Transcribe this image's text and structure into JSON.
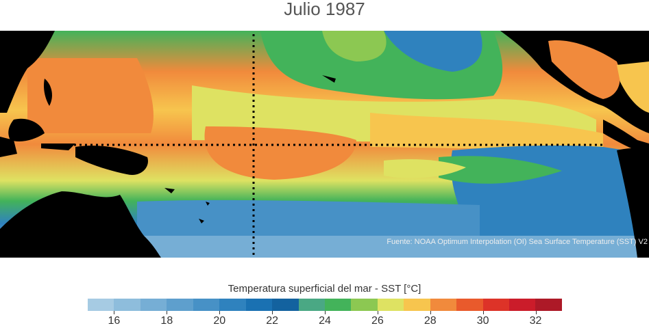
{
  "map": {
    "title": "Julio 1987",
    "source": "Fuente: NOAA Optimum Interpolation (OI) Sea Surface Temperature (SST) V2",
    "colorbar_label": "Temperatura superficial del mar - SST  [°C]",
    "colorbar_min": 15,
    "colorbar_max": 33,
    "tick_values": [
      16,
      18,
      20,
      22,
      24,
      26,
      28,
      30,
      32
    ],
    "tick_labels": [
      "16",
      "18",
      "20",
      "22",
      "24",
      "26",
      "28",
      "30",
      "32"
    ],
    "colors": [
      "#a6cbe3",
      "#8ebddc",
      "#76aed5",
      "#5e9fcd",
      "#4791c6",
      "#2f82be",
      "#1a71b2",
      "#13629f",
      "#4aa884",
      "#43b35a",
      "#8cc852",
      "#dee262",
      "#f7c54e",
      "#f18a3c",
      "#e95a2c",
      "#dd3328",
      "#cb1c2a",
      "#ad1927"
    ],
    "land_color": "#000000",
    "gridline_style": "dotted",
    "gridlines": [
      "equator",
      "dateline"
    ]
  }
}
